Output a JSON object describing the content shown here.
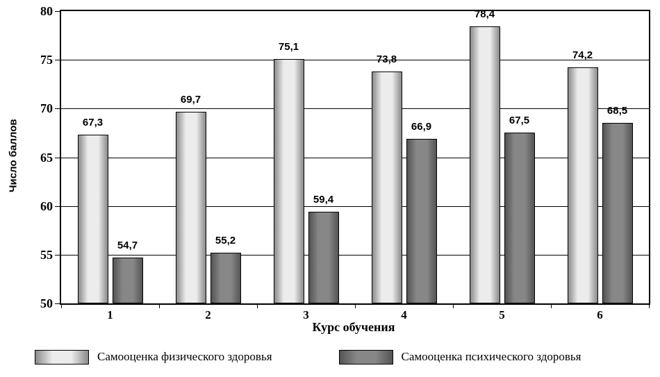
{
  "chart_data": {
    "type": "bar",
    "categories": [
      "1",
      "2",
      "3",
      "4",
      "5",
      "6"
    ],
    "series": [
      {
        "name": "Самооценка физического здоровья",
        "values": [
          67.3,
          69.7,
          75.1,
          73.8,
          78.4,
          74.2
        ],
        "labels": [
          "67,3",
          "69,7",
          "75,1",
          "73,8",
          "78,4",
          "74,2"
        ],
        "fill": {
          "edge": "#8a8a8a",
          "center": "#ececec"
        }
      },
      {
        "name": "Самооценка психического здоровья",
        "values": [
          54.7,
          55.2,
          59.4,
          66.9,
          67.5,
          68.5
        ],
        "labels": [
          "54,7",
          "55,2",
          "59,4",
          "66,9",
          "67,5",
          "68,5"
        ],
        "fill": {
          "edge": "#545454",
          "center": "#878787"
        }
      }
    ],
    "xlabel": "Курс обучения",
    "ylabel": "Число баллов",
    "ylim": [
      50,
      80
    ],
    "yticks": [
      50,
      55,
      60,
      65,
      70,
      75,
      80
    ],
    "grid": true,
    "legend_position": "bottom",
    "colors": {
      "axis": "#000000",
      "background": "#ffffff"
    }
  }
}
